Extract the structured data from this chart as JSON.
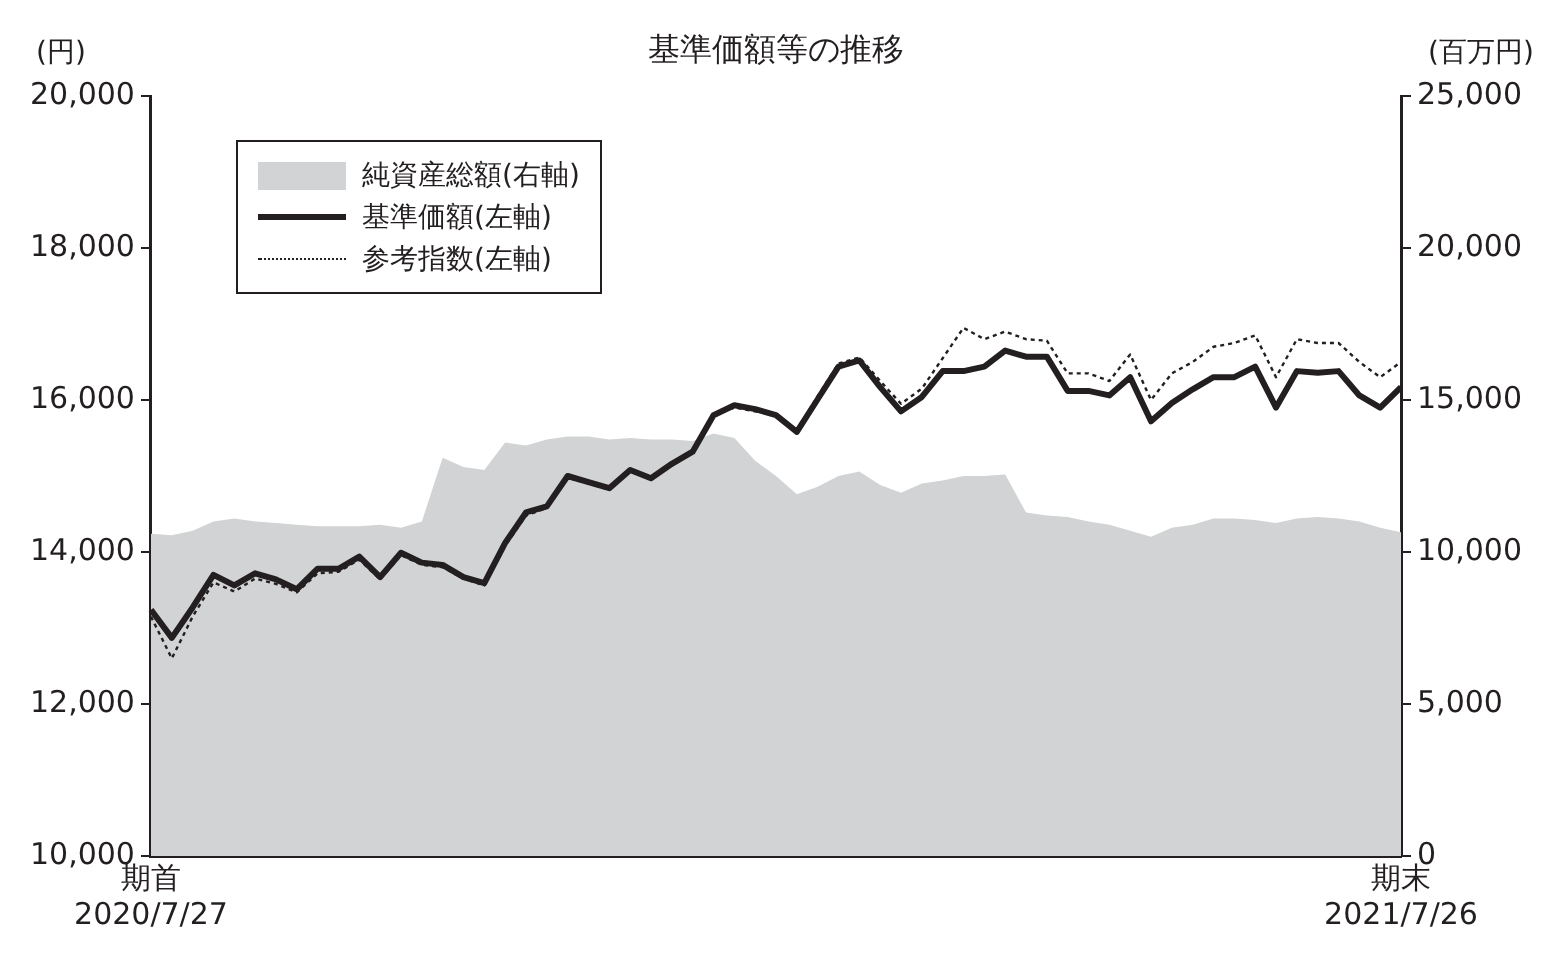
{
  "chart_data": {
    "type": "line",
    "title": "基準価額等の推移",
    "ylabel": "(円)",
    "y2label": "(百万円)",
    "categories": [
      "期首\n2020/7/27",
      null,
      null,
      null,
      null,
      null,
      null,
      null,
      null,
      null,
      null,
      null,
      null,
      null,
      null,
      null,
      null,
      null,
      null,
      null,
      null,
      null,
      null,
      null,
      null,
      null,
      null,
      null,
      null,
      null,
      null,
      null,
      null,
      null,
      null,
      null,
      null,
      null,
      null,
      null,
      null,
      null,
      null,
      null,
      null,
      null,
      null,
      null,
      null,
      null,
      null,
      null,
      null,
      null,
      null,
      null,
      null,
      null,
      null,
      null,
      "期末\n2021/7/26"
    ],
    "series": [
      {
        "name": "純資産総額(右軸)",
        "type": "area",
        "axis": "y2",
        "color": "#d1d3d4",
        "values": [
          10600,
          10550,
          10700,
          11000,
          11100,
          11000,
          10950,
          10900,
          10850,
          10850,
          10850,
          10900,
          10800,
          11000,
          13100,
          12800,
          12700,
          13600,
          13500,
          13700,
          13800,
          13800,
          13700,
          13750,
          13700,
          13700,
          13650,
          13900,
          13750,
          13000,
          12500,
          11900,
          12150,
          12500,
          12650,
          12200,
          11950,
          12250,
          12350,
          12500,
          12500,
          12550,
          11300,
          11200,
          11150,
          11000,
          10900,
          10700,
          10500,
          10800,
          10900,
          11100,
          11100,
          11050,
          10950,
          11100,
          11150,
          11100,
          11000,
          10800,
          10650
        ]
      },
      {
        "name": "基準価額(左軸)",
        "type": "line",
        "line_style": "solid",
        "color": "#231f20",
        "values": [
          13240,
          12870,
          13270,
          13700,
          13560,
          13720,
          13640,
          13510,
          13780,
          13780,
          13940,
          13670,
          13990,
          13860,
          13830,
          13670,
          13590,
          14120,
          14520,
          14600,
          15000,
          14920,
          14840,
          15080,
          14970,
          15160,
          15320,
          15800,
          15930,
          15880,
          15800,
          15580,
          16010,
          16440,
          16520,
          16170,
          15850,
          16040,
          16380,
          16380,
          16440,
          16650,
          16570,
          16570,
          16120,
          16120,
          16060,
          16300,
          15720,
          15960,
          16140,
          16300,
          16300,
          16440,
          15900,
          16380,
          16360,
          16380,
          16060,
          15900,
          16170
        ]
      },
      {
        "name": "参考指数(左軸)",
        "type": "line",
        "line_style": "dotted",
        "color": "#231f20",
        "values": [
          13150,
          12600,
          13150,
          13600,
          13480,
          13650,
          13580,
          13470,
          13720,
          13740,
          13900,
          13640,
          13960,
          13830,
          13800,
          13650,
          13560,
          14080,
          14480,
          14580,
          14980,
          14900,
          14820,
          15060,
          14960,
          15140,
          15300,
          15800,
          15900,
          15850,
          15800,
          15600,
          16050,
          16480,
          16560,
          16250,
          15950,
          16150,
          16550,
          16950,
          16800,
          16900,
          16800,
          16780,
          16350,
          16350,
          16250,
          16600,
          16000,
          16350,
          16500,
          16700,
          16750,
          16850,
          16300,
          16800,
          16750,
          16750,
          16500,
          16300,
          16500
        ]
      }
    ],
    "ylim": [
      10000,
      20000
    ],
    "yticks": [
      {
        "value": 10000,
        "label": "10,000"
      },
      {
        "value": 12000,
        "label": "12,000"
      },
      {
        "value": 14000,
        "label": "14,000"
      },
      {
        "value": 16000,
        "label": "16,000"
      },
      {
        "value": 18000,
        "label": "18,000"
      },
      {
        "value": 20000,
        "label": "20,000"
      }
    ],
    "y2lim": [
      0,
      25000
    ],
    "y2ticks": [
      0,
      {
        "value": 5000,
        "label": "5,000"
      },
      {
        "value": 10000,
        "label": "10,000"
      },
      {
        "value": 15000,
        "label": "15,000"
      },
      {
        "value": 20000,
        "label": "20,000"
      },
      {
        "value": 25000,
        "label": "25,000"
      }
    ],
    "grid": false,
    "legend": "top left",
    "marker": "none"
  }
}
